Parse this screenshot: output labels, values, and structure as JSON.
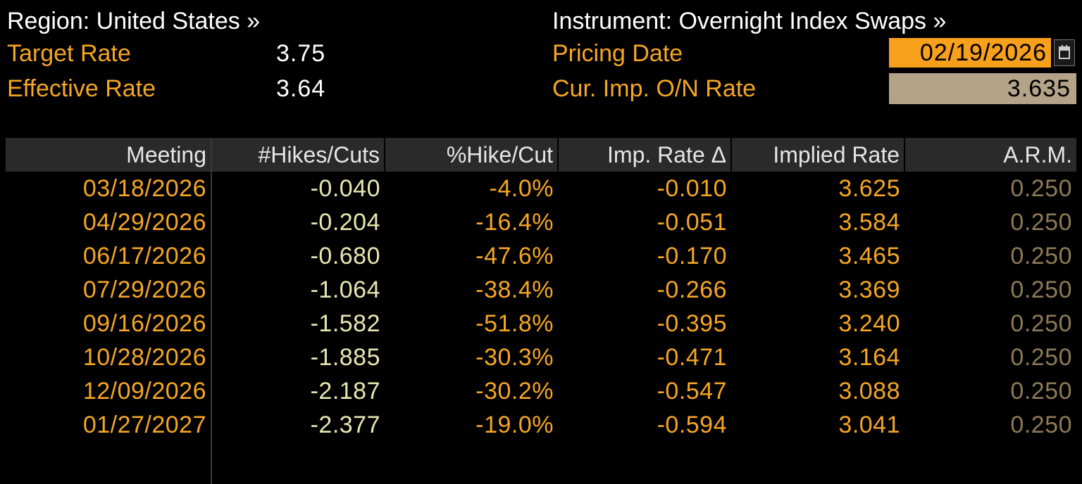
{
  "header": {
    "region_label": "Region: United States »",
    "instrument_label": "Instrument: Overnight Index Swaps »",
    "target_rate_label": "Target Rate",
    "target_rate_value": "3.75",
    "effective_rate_label": "Effective Rate",
    "effective_rate_value": "3.64",
    "pricing_date_label": "Pricing Date",
    "pricing_date_value": "02/19/2026",
    "cur_imp_label": "Cur. Imp. O/N Rate",
    "cur_imp_value": "3.635",
    "calendar_icon": "calendar-icon"
  },
  "table": {
    "columns": [
      "Meeting",
      "#Hikes/Cuts",
      "%Hike/Cut",
      "Imp. Rate Δ",
      "Implied Rate",
      "A.R.M."
    ],
    "rows": [
      [
        "03/18/2026",
        "-0.040",
        "-4.0%",
        "-0.010",
        "3.625",
        "0.250"
      ],
      [
        "04/29/2026",
        "-0.204",
        "-16.4%",
        "-0.051",
        "3.584",
        "0.250"
      ],
      [
        "06/17/2026",
        "-0.680",
        "-47.6%",
        "-0.170",
        "3.465",
        "0.250"
      ],
      [
        "07/29/2026",
        "-1.064",
        "-38.4%",
        "-0.266",
        "3.369",
        "0.250"
      ],
      [
        "09/16/2026",
        "-1.582",
        "-51.8%",
        "-0.395",
        "3.240",
        "0.250"
      ],
      [
        "10/28/2026",
        "-1.885",
        "-30.3%",
        "-0.471",
        "3.164",
        "0.250"
      ],
      [
        "12/09/2026",
        "-2.187",
        "-30.2%",
        "-0.547",
        "3.088",
        "0.250"
      ],
      [
        "01/27/2027",
        "-2.377",
        "-19.0%",
        "-0.594",
        "3.041",
        "0.250"
      ]
    ]
  },
  "colors": {
    "background": "#000000",
    "label_orange": "#f5a623",
    "date_box": "#f7a01c",
    "rate_box": "#b5a389",
    "arm_text": "#8c7a56",
    "header_bg": "#2a2a2a"
  }
}
